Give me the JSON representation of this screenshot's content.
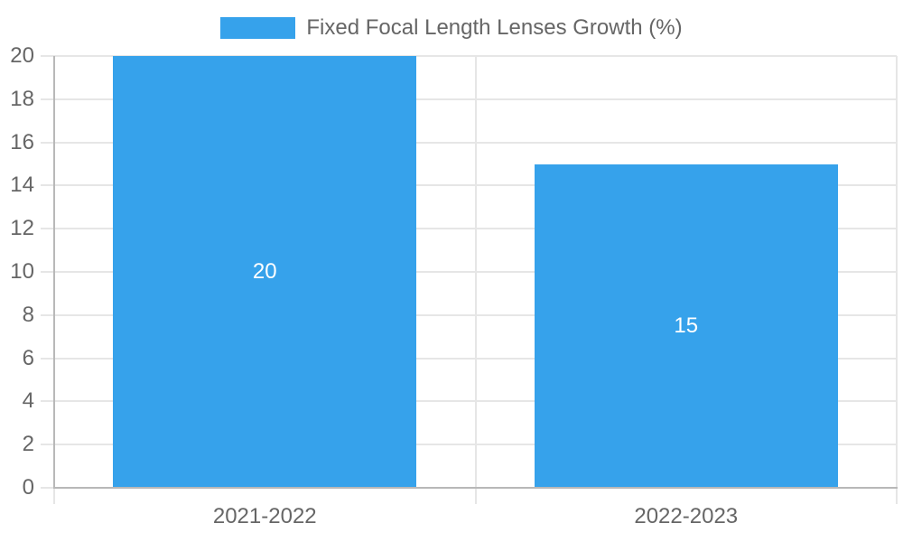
{
  "chart_data": {
    "type": "bar",
    "title": "",
    "xlabel": "",
    "ylabel": "",
    "categories": [
      "2021-2022",
      "2022-2023"
    ],
    "series": [
      {
        "name": "Fixed Focal Length Lenses Growth (%)",
        "values": [
          20,
          15
        ]
      }
    ],
    "bar_value_labels": [
      "20",
      "15"
    ],
    "ylim": [
      0,
      20
    ],
    "yticks": [
      0,
      2,
      4,
      6,
      8,
      10,
      12,
      14,
      16,
      18,
      20
    ],
    "grid": true,
    "legend_position": "top-center",
    "colors": {
      "bar": "#36A2EB",
      "grid": "#E6E6E6",
      "axis": "#B8B8B8",
      "tick_label": "#666666",
      "legend_text": "#666666",
      "bar_label": "#FFFFFF",
      "background": "#FFFFFF"
    }
  }
}
